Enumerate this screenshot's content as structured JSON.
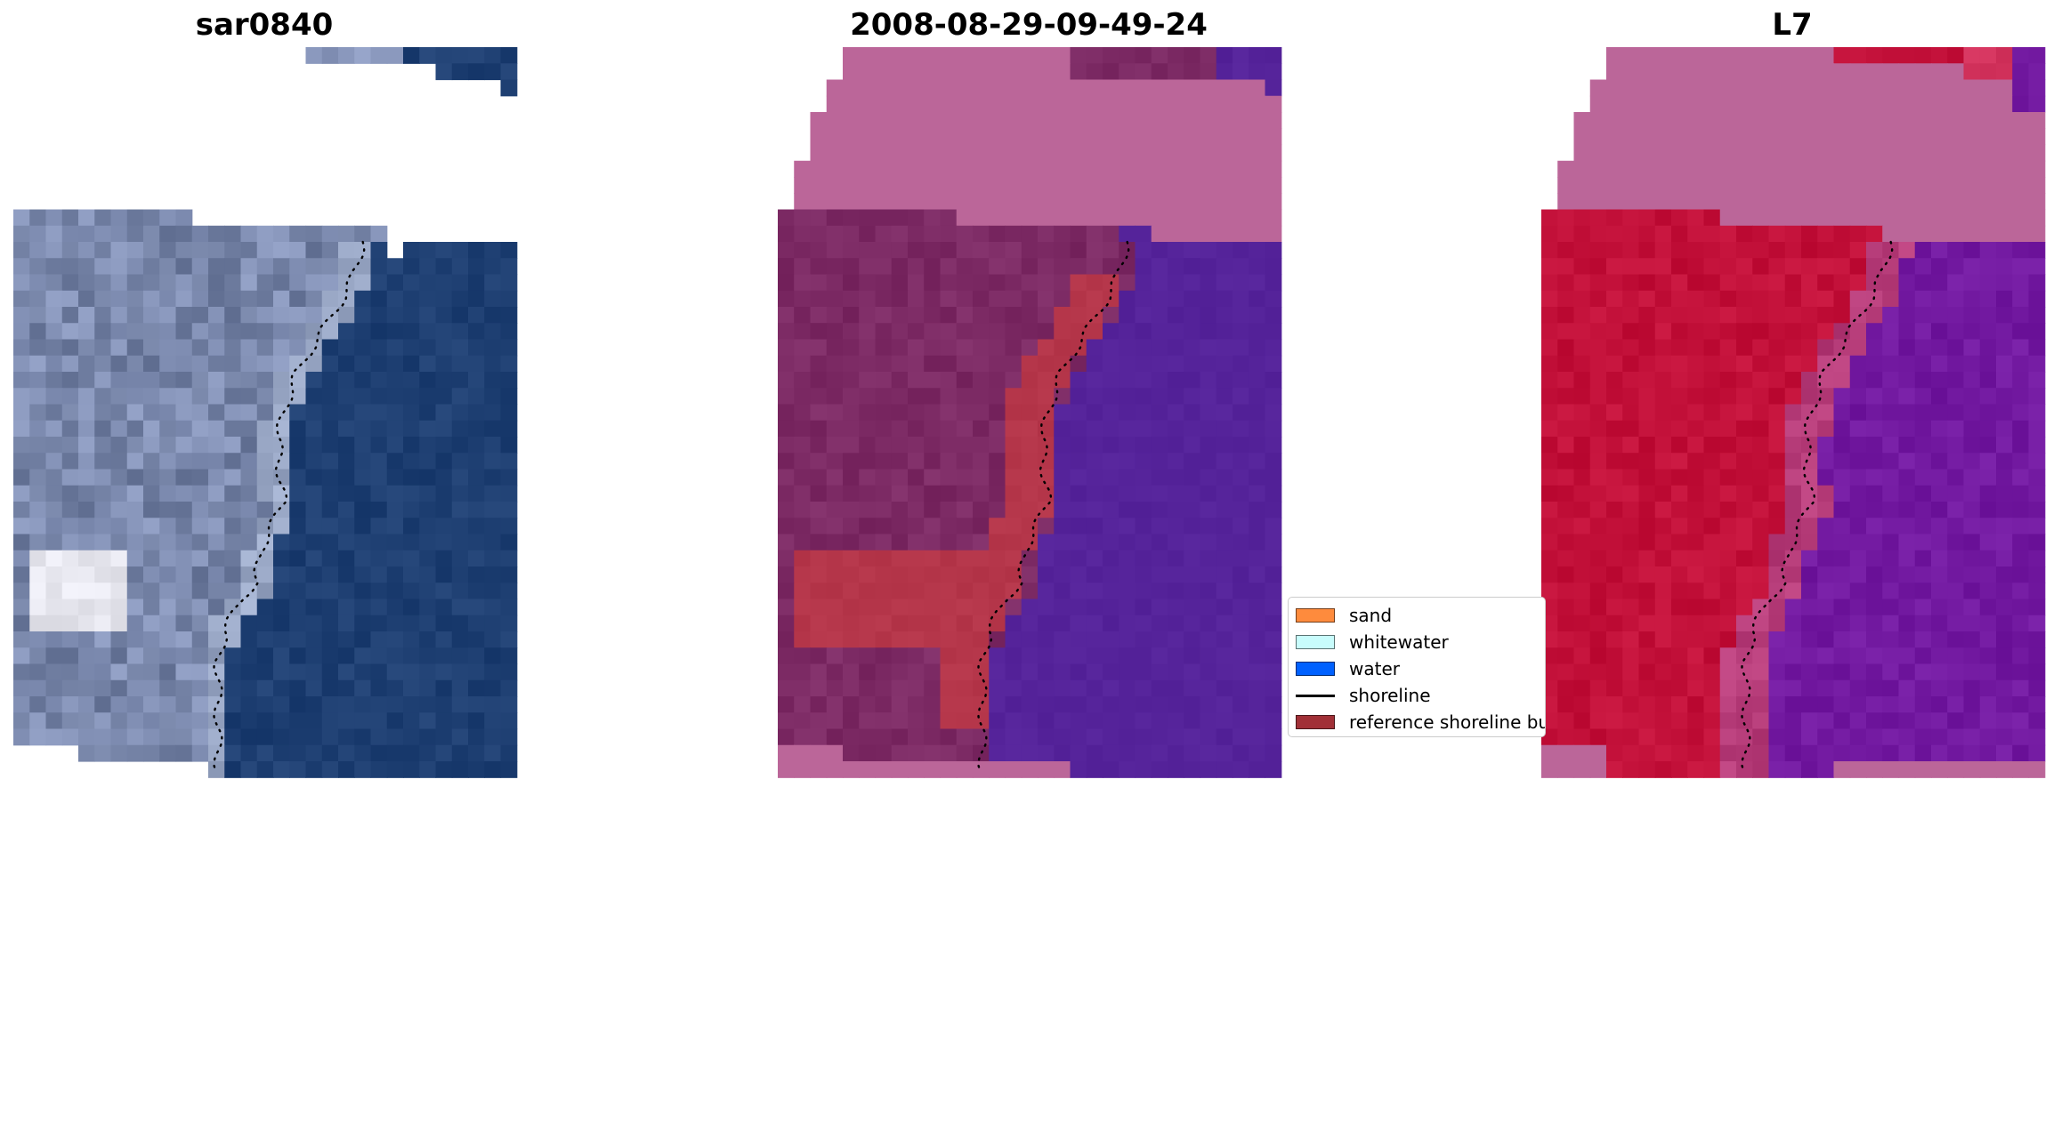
{
  "panels": [
    {
      "title": "sar0840"
    },
    {
      "title": "2008-08-29-09-49-24"
    },
    {
      "title": "L7"
    }
  ],
  "legend": {
    "items": [
      {
        "label": "sand",
        "kind": "patch",
        "color": "#fe8b3d"
      },
      {
        "label": "whitewater",
        "kind": "patch",
        "color": "#c8fcfc"
      },
      {
        "label": "water",
        "kind": "patch",
        "color": "#0061ff"
      },
      {
        "label": "shoreline",
        "kind": "line",
        "color": "#000000"
      },
      {
        "label": "reference shoreline buffer",
        "kind": "patch",
        "color": "#a13037"
      }
    ]
  },
  "colors": {
    "rgb_land": "#8593b8",
    "rgb_land_dark": "#6f7da0",
    "rgb_sea": "#1e3f72",
    "rgb_white_building": "#e6e6ee",
    "classified_outside_mask": "#bb6699",
    "classified_land": "#7c2a64",
    "classified_buffer": "#b5364a",
    "classified_water": "#55239a",
    "ndwi_outside_mask": "#bb6699",
    "ndwi_land": "#c21039",
    "ndwi_water": "#7219a0",
    "shoreline": "#000000"
  }
}
